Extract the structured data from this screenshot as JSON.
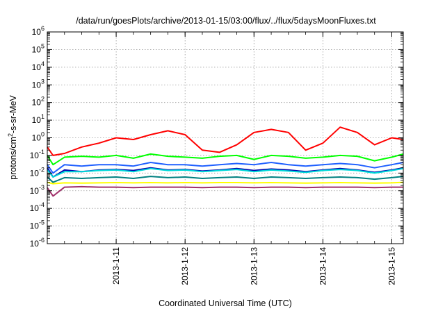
{
  "chart_data": {
    "type": "line",
    "title": "/data/run/goesPlots/archive/2013-01-15/03:00/flux/../flux/5daysMoonFluxes.txt",
    "xlabel": "Coordinated Universal Time (UTC)",
    "ylabel": "protons/cm²-s-sr-MeV",
    "ylabel_base": "protons/cm",
    "ylabel_sup": "2",
    "ylabel_rest": "-s-sr-MeV",
    "yscale": "log",
    "ylim": [
      1e-06,
      1000000.0
    ],
    "xlim": [
      "2013-01-10T00:00",
      "2013-01-15T04:00"
    ],
    "grid": true,
    "y_tick_exponents": [
      "-6",
      "-5",
      "-4",
      "-3",
      "-2",
      "-1",
      "0",
      "1",
      "2",
      "3",
      "4",
      "5",
      "6"
    ],
    "y_tick_base": "10",
    "x_ticks": [
      {
        "value": "2013-01-11T00:00",
        "label": "2013-1-11"
      },
      {
        "value": "2013-01-12T00:00",
        "label": "2013-1-12"
      },
      {
        "value": "2013-01-13T00:00",
        "label": "2013-1-13"
      },
      {
        "value": "2013-01-14T00:00",
        "label": "2013-1-14"
      },
      {
        "value": "2013-01-15T00:00",
        "label": "2013-1-15"
      }
    ],
    "x": [
      "2013-01-10T00:00",
      "2013-01-10T02:00",
      "2013-01-10T06:00",
      "2013-01-10T12:00",
      "2013-01-10T18:00",
      "2013-01-11T00:00",
      "2013-01-11T06:00",
      "2013-01-11T12:00",
      "2013-01-11T18:00",
      "2013-01-12T00:00",
      "2013-01-12T06:00",
      "2013-01-12T12:00",
      "2013-01-12T18:00",
      "2013-01-13T00:00",
      "2013-01-13T06:00",
      "2013-01-13T12:00",
      "2013-01-13T18:00",
      "2013-01-14T00:00",
      "2013-01-14T06:00",
      "2013-01-14T12:00",
      "2013-01-14T18:00",
      "2013-01-15T00:00",
      "2013-01-15T04:00"
    ],
    "series": [
      {
        "color": "#ff0000",
        "values": [
          0.3,
          0.1,
          0.13,
          0.3,
          0.5,
          1.0,
          0.8,
          1.5,
          2.5,
          1.5,
          0.2,
          0.15,
          0.4,
          2.0,
          3.0,
          2.0,
          0.2,
          0.5,
          4.0,
          2.0,
          0.4,
          1.0,
          0.8
        ]
      },
      {
        "color": "#00ff00",
        "values": [
          0.1,
          0.03,
          0.08,
          0.09,
          0.08,
          0.1,
          0.07,
          0.12,
          0.09,
          0.08,
          0.07,
          0.09,
          0.1,
          0.06,
          0.1,
          0.09,
          0.07,
          0.08,
          0.1,
          0.09,
          0.05,
          0.08,
          0.12
        ]
      },
      {
        "color": "#2060ff",
        "values": [
          0.03,
          0.01,
          0.03,
          0.025,
          0.03,
          0.03,
          0.025,
          0.04,
          0.03,
          0.03,
          0.025,
          0.03,
          0.035,
          0.03,
          0.04,
          0.03,
          0.025,
          0.03,
          0.035,
          0.03,
          0.02,
          0.03,
          0.04
        ]
      },
      {
        "color": "#00d8d8",
        "values": [
          0.015,
          0.006,
          0.012,
          0.012,
          0.014,
          0.015,
          0.012,
          0.018,
          0.014,
          0.015,
          0.012,
          0.014,
          0.016,
          0.012,
          0.015,
          0.013,
          0.011,
          0.014,
          0.016,
          0.014,
          0.01,
          0.014,
          0.018
        ]
      },
      {
        "color": "#0000b0",
        "values": [
          0.02,
          0.006,
          0.015,
          0.012,
          0.015,
          0.016,
          0.014,
          0.02,
          0.015,
          0.016,
          0.013,
          0.015,
          0.018,
          0.014,
          0.017,
          0.015,
          0.012,
          0.015,
          0.018,
          0.015,
          0.011,
          0.015,
          0.02
        ]
      },
      {
        "color": "#008080",
        "values": [
          0.006,
          0.003,
          0.0055,
          0.005,
          0.0055,
          0.006,
          0.005,
          0.0065,
          0.0055,
          0.006,
          0.005,
          0.0055,
          0.006,
          0.005,
          0.006,
          0.0055,
          0.005,
          0.0055,
          0.006,
          0.0055,
          0.0045,
          0.0055,
          0.0065
        ]
      },
      {
        "color": "#ffff00",
        "values": [
          0.003,
          0.0025,
          0.0028,
          0.0027,
          0.0028,
          0.0029,
          0.0028,
          0.0029,
          0.0028,
          0.0029,
          0.0028,
          0.0029,
          0.0029,
          0.0028,
          0.0029,
          0.0028,
          0.0027,
          0.0028,
          0.0029,
          0.0028,
          0.0027,
          0.0028,
          0.003
        ]
      },
      {
        "color": "#a0306a",
        "values": [
          0.0015,
          0.0005,
          0.0016,
          0.0017,
          0.0016,
          0.0016,
          0.0015,
          0.0016,
          0.0016,
          0.0016,
          0.0015,
          0.0016,
          0.0016,
          0.0015,
          0.0016,
          0.0016,
          0.0015,
          0.0016,
          0.0016,
          0.0016,
          0.0015,
          0.0016,
          0.0016
        ]
      }
    ]
  }
}
